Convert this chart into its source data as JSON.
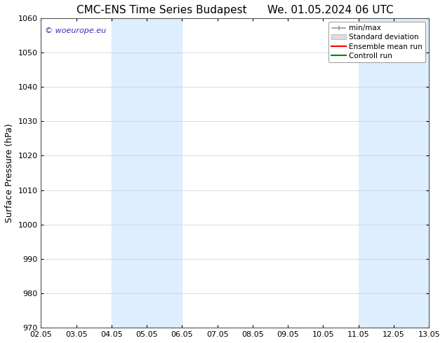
{
  "title_left": "CMC-ENS Time Series Budapest",
  "title_right": "We. 01.05.2024 06 UTC",
  "ylabel": "Surface Pressure (hPa)",
  "ylim": [
    970,
    1060
  ],
  "yticks": [
    970,
    980,
    990,
    1000,
    1010,
    1020,
    1030,
    1040,
    1050,
    1060
  ],
  "xtick_labels": [
    "02.05",
    "03.05",
    "04.05",
    "05.05",
    "06.05",
    "07.05",
    "08.05",
    "09.05",
    "10.05",
    "11.05",
    "12.05",
    "13.05"
  ],
  "xtick_positions": [
    0,
    1,
    2,
    3,
    4,
    5,
    6,
    7,
    8,
    9,
    10,
    11
  ],
  "shaded_regions": [
    {
      "x_start": 2,
      "x_end": 4,
      "color": "#ddeeff"
    },
    {
      "x_start": 9,
      "x_end": 11,
      "color": "#ddeeff"
    }
  ],
  "watermark": "© woeurope.eu",
  "watermark_color": "#3333bb",
  "legend_labels": [
    "min/max",
    "Standard deviation",
    "Ensemble mean run",
    "Controll run"
  ],
  "legend_line_colors": [
    "#999999",
    "#cccccc",
    "#ff0000",
    "#008800"
  ],
  "bg_color": "#ffffff",
  "grid_color": "#cccccc",
  "title_fontsize": 11,
  "label_fontsize": 9,
  "tick_fontsize": 8,
  "legend_fontsize": 7.5
}
